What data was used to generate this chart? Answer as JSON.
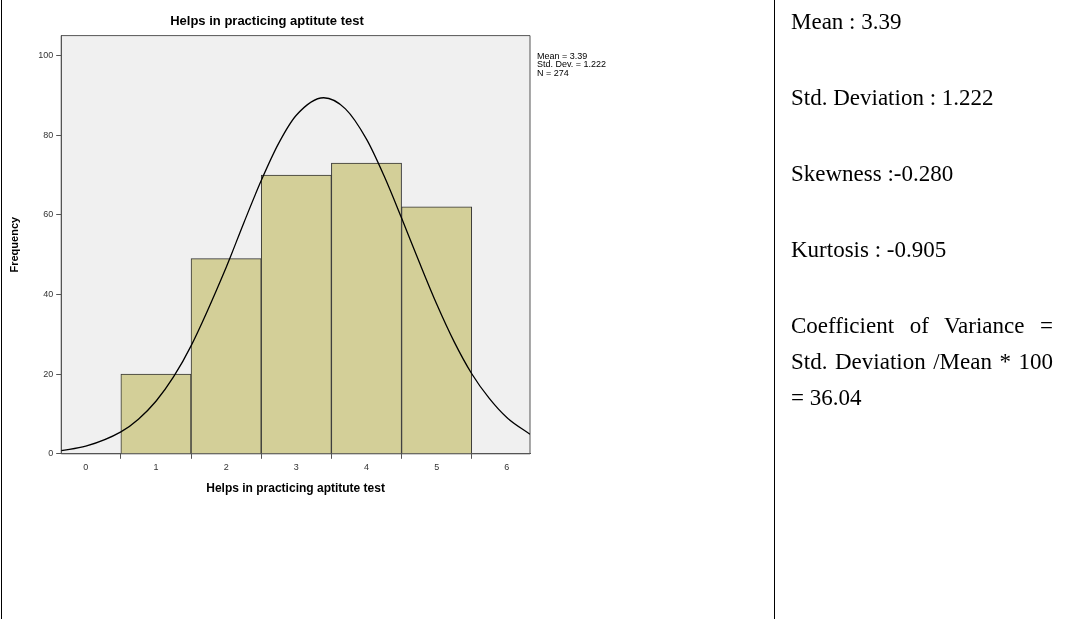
{
  "chart_data": {
    "type": "histogram",
    "title": "Helps in practicing aptitute test",
    "xlabel": "Helps in practicing aptitute test",
    "ylabel": "Frequency",
    "bins": [
      0.5,
      1.5,
      2.5,
      3.5,
      4.5,
      5.5
    ],
    "values": [
      20,
      49,
      70,
      73,
      62
    ],
    "color": "#d3cf98",
    "series": [
      {
        "type": "line",
        "color": "#000000",
        "x": [
          -0.35,
          0,
          0.5,
          0.75,
          1,
          1.25,
          1.5,
          2,
          2.25,
          2.5,
          2.75,
          3,
          3.39,
          3.7,
          4,
          4.25,
          4.5,
          4.75,
          5,
          5.25,
          5.5,
          5.75,
          6,
          6.33
        ],
        "values": [
          0.8,
          1.9,
          5.5,
          8.7,
          13.2,
          19.3,
          27.1,
          46.8,
          57.9,
          68.6,
          78,
          85,
          89.4,
          86.6,
          79,
          69.8,
          59.2,
          48.2,
          37.6,
          28.1,
          20.1,
          13.9,
          9.1,
          4.9
        ]
      }
    ],
    "xlim": [
      -0.35,
      6.33
    ],
    "xticks": [
      0,
      1,
      2,
      3,
      4,
      5,
      6
    ],
    "ylim": [
      0,
      105
    ],
    "yticks": [
      0,
      20,
      40,
      60,
      80,
      100
    ],
    "grid": false,
    "legend": false,
    "marker": "none",
    "line_style": "solid",
    "annotations": [
      "Mean = 3.39\nStd. Dev. = 1.222\nN = 274",
      "Mean : 3.39",
      "Std. Deviation : 1.222",
      "Skewness :-0.280",
      "Kurtosis : -0.905",
      "Coefficient of Variance = Std. Deviation /Mean * 100 = 36.04"
    ]
  }
}
